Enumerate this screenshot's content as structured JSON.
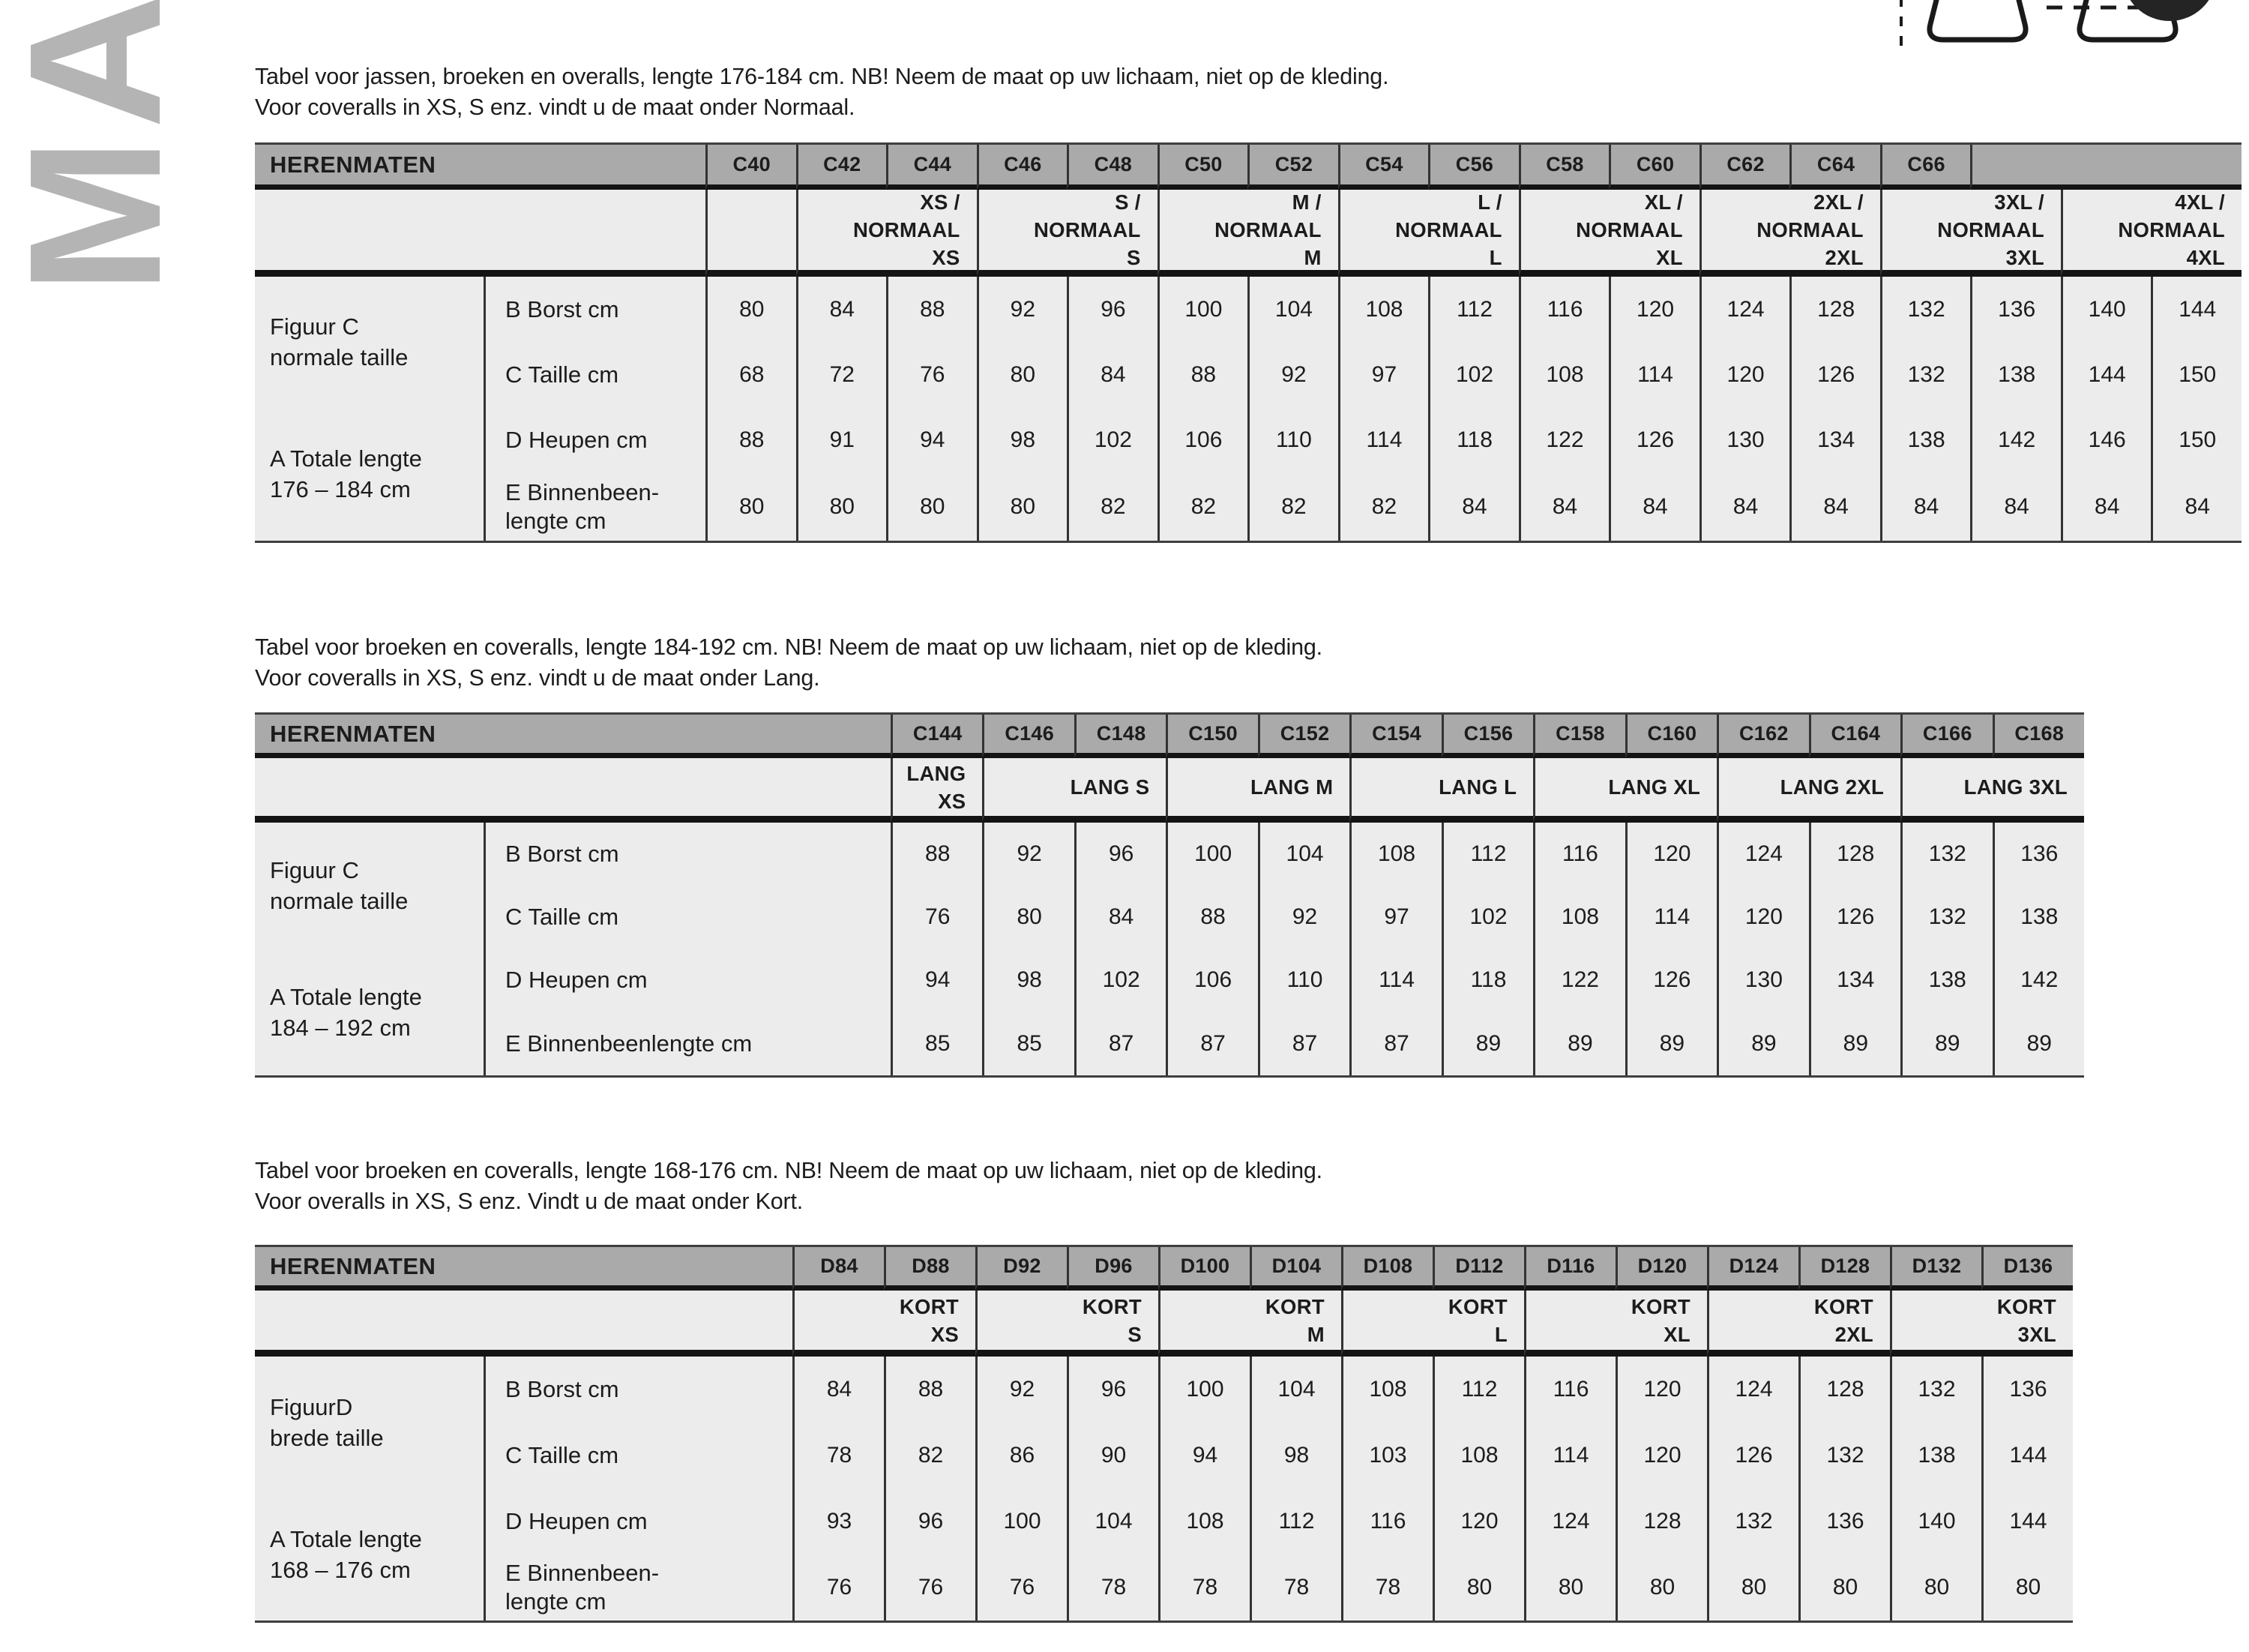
{
  "theme": {
    "header_gray": "#aaaaaa",
    "row_background": "#ececec",
    "thick_line": "#141414",
    "separator_line": "#333333",
    "text_color": "#1c1c1c",
    "brand_gray": "#b4b4b4"
  },
  "brand": {
    "text": "MA"
  },
  "illustration": {
    "parts": [
      "dashed-line-vertical",
      "figure-leg-shape-left",
      "dashed-line-horizontal",
      "figure-leg-shape-right",
      "figure-dark-blob"
    ]
  },
  "sections": [
    {
      "intro_line1": "Tabel voor jassen, broeken en overalls, lengte 176-184 cm. NB! Neem de maat op uw lichaam, niet op de kleding.",
      "intro_line2": "Voor coveralls in XS, S enz. vindt u de maat onder Normaal.",
      "table": {
        "header_label": "HERENMATEN",
        "size_codes": [
          "C40",
          "C42",
          "C44",
          "C46",
          "C48",
          "C50",
          "C52",
          "C54",
          "C56",
          "C58",
          "C60",
          "C62",
          "C64",
          "C66"
        ],
        "trailing_blank_span": 3,
        "groups": [
          {
            "lines": [],
            "span": 1
          },
          {
            "lines": [
              "XS /",
              "NORMAAL",
              "XS"
            ],
            "span": 2
          },
          {
            "lines": [
              "S /",
              "NORMAAL",
              "S"
            ],
            "span": 2
          },
          {
            "lines": [
              "M /",
              "NORMAAL",
              "M"
            ],
            "span": 2
          },
          {
            "lines": [
              "L /",
              "NORMAAL",
              "L"
            ],
            "span": 2
          },
          {
            "lines": [
              "XL /",
              "NORMAAL",
              "XL"
            ],
            "span": 2
          },
          {
            "lines": [
              "2XL /",
              "NORMAAL",
              "2XL"
            ],
            "span": 2
          },
          {
            "lines": [
              "3XL /",
              "NORMAAL",
              "3XL"
            ],
            "span": 2
          },
          {
            "lines": [
              "4XL /",
              "NORMAAL",
              "4XL"
            ],
            "span": 2
          }
        ],
        "side_labels": [
          [
            "Figuur C",
            "normale taille"
          ],
          [
            "A Totale lengte",
            "176 – 184 cm"
          ]
        ],
        "rows": [
          {
            "label": [
              "B Borst cm"
            ],
            "values": [
              80,
              84,
              88,
              92,
              96,
              100,
              104,
              108,
              112,
              116,
              120,
              124,
              128,
              132,
              136,
              140,
              144
            ]
          },
          {
            "label": [
              "C Taille cm"
            ],
            "values": [
              68,
              72,
              76,
              80,
              84,
              88,
              92,
              97,
              102,
              108,
              114,
              120,
              126,
              132,
              138,
              144,
              150
            ]
          },
          {
            "label": [
              "D Heupen cm"
            ],
            "values": [
              88,
              91,
              94,
              98,
              102,
              106,
              110,
              114,
              118,
              122,
              126,
              130,
              134,
              138,
              142,
              146,
              150
            ]
          },
          {
            "label": [
              "E Binnenbeen-",
              "lengte cm"
            ],
            "values": [
              80,
              80,
              80,
              80,
              82,
              82,
              82,
              82,
              84,
              84,
              84,
              84,
              84,
              84,
              84,
              84,
              84
            ]
          }
        ]
      }
    },
    {
      "intro_line1": "Tabel voor broeken en coveralls, lengte 184-192 cm. NB! Neem de maat op uw lichaam, niet op de kleding.",
      "intro_line2": "Voor coveralls in XS, S enz. vindt u de maat onder Lang.",
      "table": {
        "header_label": "HERENMATEN",
        "size_codes": [
          "C144",
          "C146",
          "C148",
          "C150",
          "C152",
          "C154",
          "C156",
          "C158",
          "C160",
          "C162",
          "C164",
          "C166",
          "C168"
        ],
        "trailing_blank_span": 0,
        "groups": [
          {
            "lines": [
              "LANG",
              "XS"
            ],
            "span": 1
          },
          {
            "lines": [
              "LANG S"
            ],
            "span": 2
          },
          {
            "lines": [
              "LANG M"
            ],
            "span": 2
          },
          {
            "lines": [
              "LANG L"
            ],
            "span": 2
          },
          {
            "lines": [
              "LANG XL"
            ],
            "span": 2
          },
          {
            "lines": [
              "LANG 2XL"
            ],
            "span": 2
          },
          {
            "lines": [
              "LANG 3XL"
            ],
            "span": 2
          }
        ],
        "side_labels": [
          [
            "Figuur C",
            "normale taille"
          ],
          [
            "A Totale lengte",
            "184 – 192 cm"
          ]
        ],
        "rows": [
          {
            "label": [
              "B Borst cm"
            ],
            "values": [
              88,
              92,
              96,
              100,
              104,
              108,
              112,
              116,
              120,
              124,
              128,
              132,
              136
            ]
          },
          {
            "label": [
              "C Taille cm"
            ],
            "values": [
              76,
              80,
              84,
              88,
              92,
              97,
              102,
              108,
              114,
              120,
              126,
              132,
              138
            ]
          },
          {
            "label": [
              "D Heupen cm"
            ],
            "values": [
              94,
              98,
              102,
              106,
              110,
              114,
              118,
              122,
              126,
              130,
              134,
              138,
              142
            ]
          },
          {
            "label": [
              "E Binnenbeenlengte cm"
            ],
            "values": [
              85,
              85,
              87,
              87,
              87,
              87,
              89,
              89,
              89,
              89,
              89,
              89,
              89
            ]
          }
        ]
      }
    },
    {
      "intro_line1": "Tabel voor broeken en coveralls, lengte 168-176 cm. NB! Neem de maat op uw lichaam, niet op de kleding.",
      "intro_line2": "Voor overalls in XS, S enz. Vindt u de maat onder Kort.",
      "table": {
        "header_label": "HERENMATEN",
        "size_codes": [
          "D84",
          "D88",
          "D92",
          "D96",
          "D100",
          "D104",
          "D108",
          "D112",
          "D116",
          "D120",
          "D124",
          "D128",
          "D132",
          "D136"
        ],
        "trailing_blank_span": 0,
        "groups": [
          {
            "lines": [
              "KORT",
              "XS"
            ],
            "span": 2
          },
          {
            "lines": [
              "KORT",
              "S"
            ],
            "span": 2
          },
          {
            "lines": [
              "KORT",
              "M"
            ],
            "span": 2
          },
          {
            "lines": [
              "KORT",
              "L"
            ],
            "span": 2
          },
          {
            "lines": [
              "KORT",
              "XL"
            ],
            "span": 2
          },
          {
            "lines": [
              "KORT",
              "2XL"
            ],
            "span": 2
          },
          {
            "lines": [
              "KORT",
              "3XL"
            ],
            "span": 2
          }
        ],
        "side_labels": [
          [
            "FiguurD",
            "brede taille"
          ],
          [
            "A Totale lengte",
            "168 – 176 cm"
          ]
        ],
        "rows": [
          {
            "label": [
              "B Borst cm"
            ],
            "values": [
              84,
              88,
              92,
              96,
              100,
              104,
              108,
              112,
              116,
              120,
              124,
              128,
              132,
              136
            ]
          },
          {
            "label": [
              "C Taille cm"
            ],
            "values": [
              78,
              82,
              86,
              90,
              94,
              98,
              103,
              108,
              114,
              120,
              126,
              132,
              138,
              144
            ]
          },
          {
            "label": [
              "D Heupen cm"
            ],
            "values": [
              93,
              96,
              100,
              104,
              108,
              112,
              116,
              120,
              124,
              128,
              132,
              136,
              140,
              144
            ]
          },
          {
            "label": [
              "E Binnenbeen-",
              "lengte cm"
            ],
            "values": [
              76,
              76,
              76,
              78,
              78,
              78,
              78,
              80,
              80,
              80,
              80,
              80,
              80,
              80
            ]
          }
        ]
      }
    }
  ]
}
